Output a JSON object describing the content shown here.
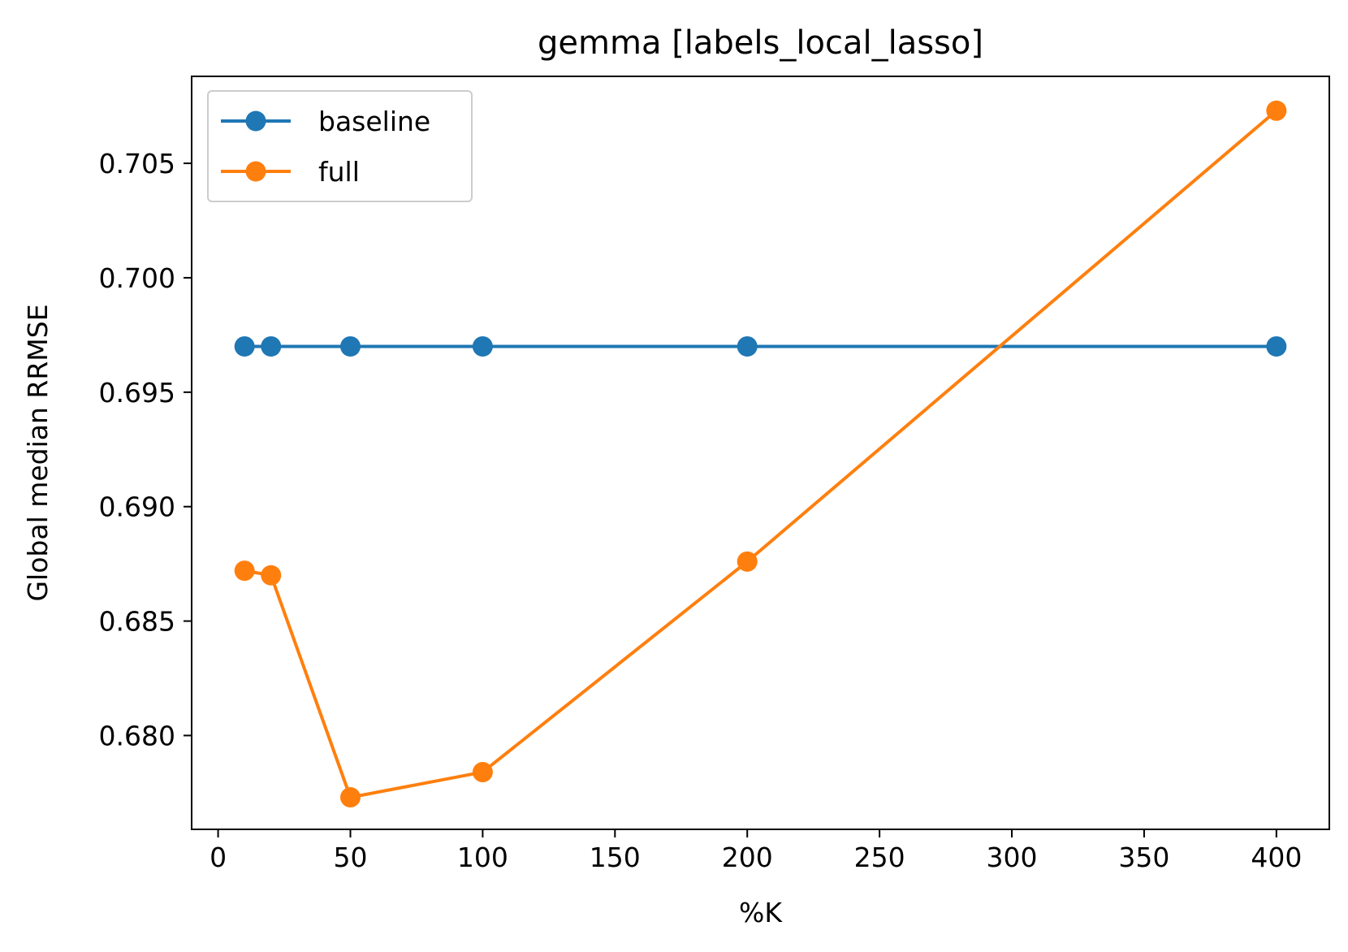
{
  "chart_data": {
    "type": "line",
    "title": "gemma [labels_local_lasso]",
    "xlabel": "%K",
    "ylabel": "Global median RRMSE",
    "x": [
      10,
      20,
      50,
      100,
      200,
      400
    ],
    "xlim": [
      -10,
      420
    ],
    "ylim": [
      0.6759,
      0.7088
    ],
    "xticks": [
      0,
      50,
      100,
      150,
      200,
      250,
      300,
      350,
      400
    ],
    "xtick_labels": [
      "0",
      "50",
      "100",
      "150",
      "200",
      "250",
      "300",
      "350",
      "400"
    ],
    "yticks": [
      0.68,
      0.685,
      0.69,
      0.695,
      0.7,
      0.705
    ],
    "ytick_labels": [
      "0.680",
      "0.685",
      "0.690",
      "0.695",
      "0.700",
      "0.705"
    ],
    "grid": false,
    "legend_position": "top-left",
    "series": [
      {
        "name": "baseline",
        "color": "#1f77b4",
        "marker": "circle",
        "values": [
          0.697,
          0.697,
          0.697,
          0.697,
          0.697,
          0.697
        ]
      },
      {
        "name": "full",
        "color": "#ff7f0e",
        "marker": "circle",
        "values": [
          0.6872,
          0.687,
          0.6773,
          0.6784,
          0.6876,
          0.7073
        ]
      }
    ]
  }
}
